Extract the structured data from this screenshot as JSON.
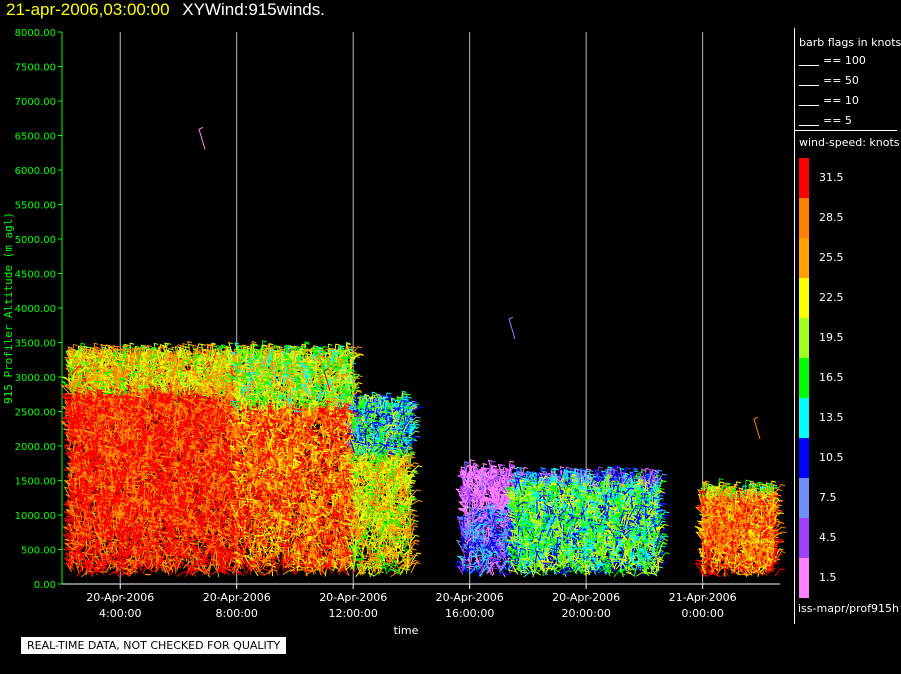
{
  "header": {
    "date": "21-apr-2006,03:00:00",
    "title": "XYWind:915winds."
  },
  "footer": {
    "note": "REAL-TIME DATA, NOT CHECKED FOR QUALITY",
    "source": "iss-mapr/prof915h"
  },
  "legend": {
    "barb_title": "barb flags in knots",
    "barbs": [
      "== 100",
      "== 50",
      "== 10",
      "== 5"
    ],
    "speed_title": "wind-speed: knots",
    "speed_bins": [
      {
        "label": "31.5",
        "color": "#ff0000"
      },
      {
        "label": "28.5",
        "color": "#ff7f00"
      },
      {
        "label": "25.5",
        "color": "#ff9f00"
      },
      {
        "label": "22.5",
        "color": "#ffff00"
      },
      {
        "label": "19.5",
        "color": "#a0ff20"
      },
      {
        "label": "16.5",
        "color": "#00ff00"
      },
      {
        "label": "13.5",
        "color": "#00ffff"
      },
      {
        "label": "10.5",
        "color": "#0000ff"
      },
      {
        "label": "7.5",
        "color": "#6f8fff"
      },
      {
        "label": "4.5",
        "color": "#a040ff"
      },
      {
        "label": "1.5",
        "color": "#ff80ff"
      }
    ]
  },
  "chart_data": {
    "type": "scatter",
    "subtype": "wind-barb time-height profile",
    "title": "XYWind:915winds.",
    "xlabel": "time",
    "ylabel": "915 Profiler Altitude (m agl)",
    "ylim": [
      0,
      8000
    ],
    "yticks": [
      "0.00",
      "500.00",
      "1000.00",
      "1500.00",
      "2000.00",
      "2500.00",
      "3000.00",
      "3500.00",
      "4000.00",
      "4500.00",
      "5000.00",
      "5500.00",
      "6000.00",
      "6500.00",
      "7000.00",
      "7500.00",
      "8000.00"
    ],
    "xlim": [
      "2006-04-20T02:00",
      "2006-04-21T03:00"
    ],
    "xticks": [
      {
        "value": "2006-04-20T04:00",
        "line1": "20-Apr-2006",
        "line2": "4:00:00"
      },
      {
        "value": "2006-04-20T08:00",
        "line1": "20-Apr-2006",
        "line2": "8:00:00"
      },
      {
        "value": "2006-04-20T12:00",
        "line1": "20-Apr-2006",
        "line2": "12:00:00"
      },
      {
        "value": "2006-04-20T16:00",
        "line1": "20-Apr-2006",
        "line2": "16:00:00"
      },
      {
        "value": "2006-04-20T20:00",
        "line1": "20-Apr-2006",
        "line2": "20:00:00"
      },
      {
        "value": "2006-04-21T00:00",
        "line1": "21-Apr-2006",
        "line2": "0:00:00"
      }
    ],
    "grid": "vertical lines at x ticks",
    "axis_color": "#00ff00",
    "segments": [
      {
        "start": "2006-04-20T02:15",
        "end": "2006-04-20T08:00",
        "top": 3300,
        "dense_top": 2700,
        "speed": 31.5
      },
      {
        "start": "2006-04-20T08:00",
        "end": "2006-04-20T12:00",
        "top": 3300,
        "dense_top": 2500,
        "speed": 28.5
      },
      {
        "start": "2006-04-20T12:00",
        "end": "2006-04-20T14:00",
        "top": 2600,
        "dense_top": 1800,
        "speed": 22.5
      },
      {
        "start": "2006-04-20T15:45",
        "end": "2006-04-20T17:30",
        "top": 1600,
        "dense_top": 1000,
        "speed": 7.5
      },
      {
        "start": "2006-04-20T17:30",
        "end": "2006-04-20T22:30",
        "top": 1500,
        "dense_top": 1400,
        "speed": 16.5
      },
      {
        "start": "2006-04-21T00:00",
        "end": "2006-04-21T02:30",
        "top": 1300,
        "dense_top": 1200,
        "speed": 28.5
      }
    ]
  }
}
